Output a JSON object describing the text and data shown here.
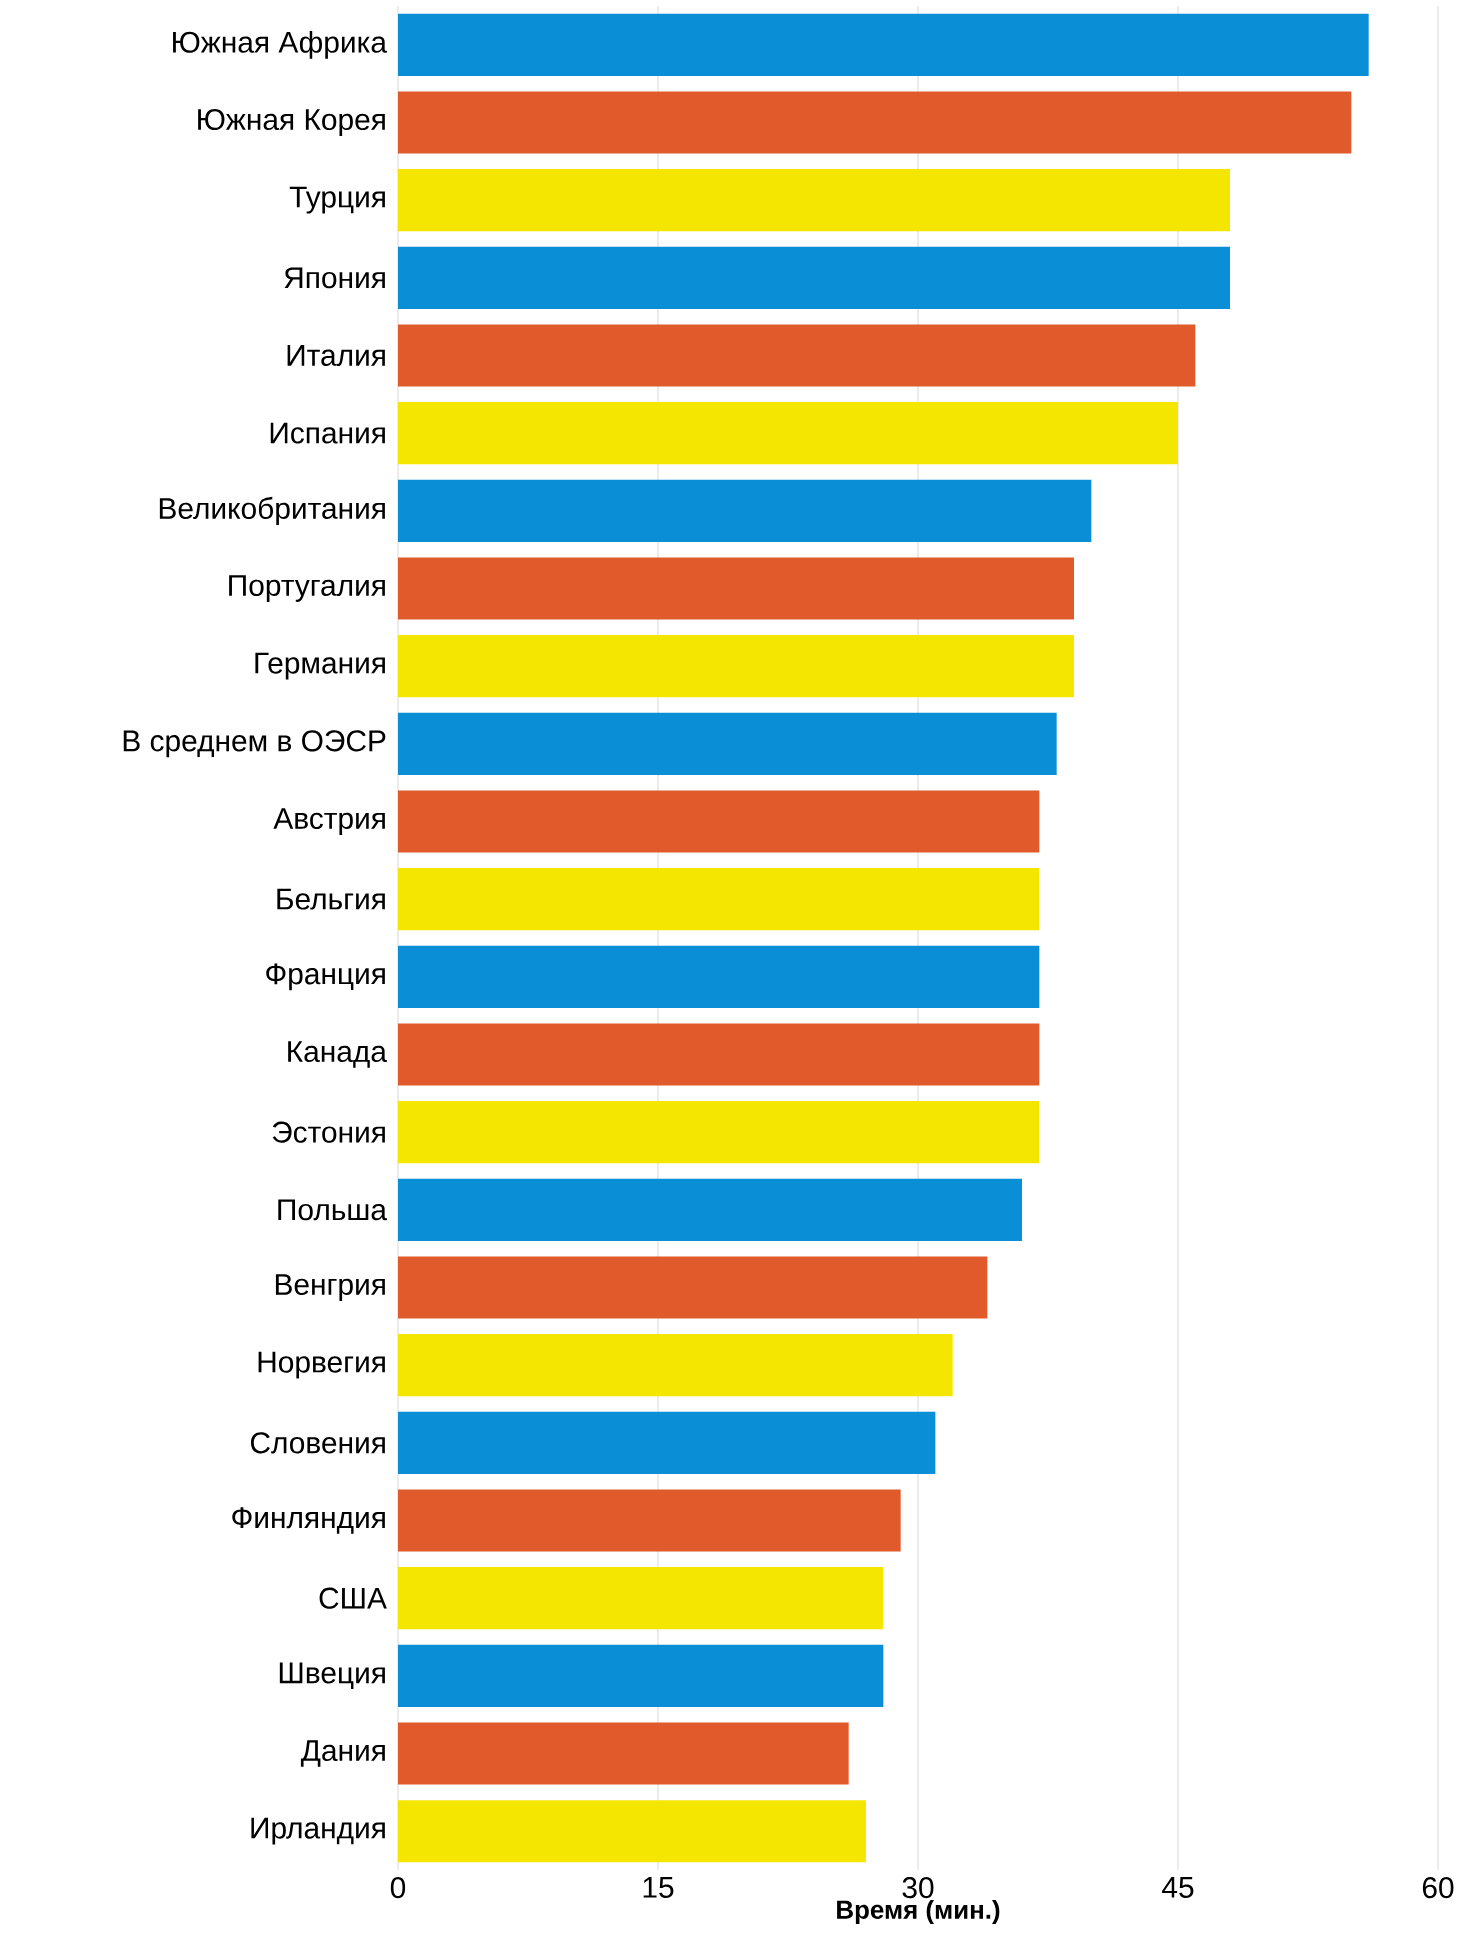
{
  "chart_data": {
    "type": "bar",
    "orientation": "horizontal",
    "categories": [
      "Южная Африка",
      "Южная Корея",
      "Турция",
      "Япония",
      "Италия",
      "Испания",
      "Великобритания",
      "Португалия",
      "Германия",
      "В среднем в ОЭСР",
      "Австрия",
      "Бельгия",
      "Франция",
      "Канада",
      "Эстония",
      "Польша",
      "Венгрия",
      "Норвегия",
      "Словения",
      "Финляндия",
      "США",
      "Швеция",
      "Дания",
      "Ирландия"
    ],
    "values": [
      56,
      55,
      48,
      48,
      46,
      45,
      40,
      39,
      39,
      38,
      37,
      37,
      37,
      37,
      37,
      36,
      34,
      32,
      31,
      29,
      28,
      28,
      26,
      27
    ],
    "colors": [
      "#0a8fd6",
      "#e05a2b",
      "#f5e600",
      "#0a8fd6",
      "#e05a2b",
      "#f5e600",
      "#0a8fd6",
      "#e05a2b",
      "#f5e600",
      "#0a8fd6",
      "#e05a2b",
      "#f5e600",
      "#0a8fd6",
      "#e05a2b",
      "#f5e600",
      "#0a8fd6",
      "#e05a2b",
      "#f5e600",
      "#0a8fd6",
      "#e05a2b",
      "#f5e600",
      "#0a8fd6",
      "#e05a2b",
      "#f5e600"
    ],
    "xlabel": "Время (мин.)",
    "xlim": [
      0,
      60
    ],
    "xticks": [
      0,
      15,
      30,
      45,
      60
    ],
    "grid": "x"
  }
}
